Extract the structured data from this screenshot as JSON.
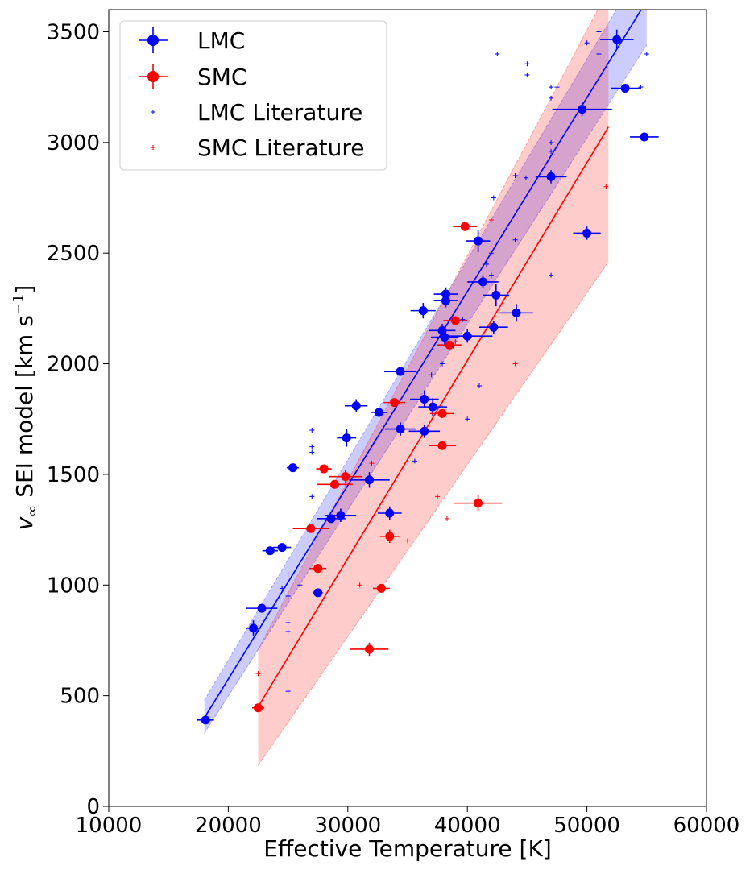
{
  "chart_data": {
    "type": "scatter",
    "xlabel": "Effective Temperature [K]",
    "ylabel_parts": [
      "v",
      "∞",
      " SEI model [km s",
      "−1",
      "]"
    ],
    "xlim": [
      10000,
      60000
    ],
    "ylim": [
      0,
      3600
    ],
    "x_ticks": [
      10000,
      20000,
      30000,
      40000,
      50000,
      60000
    ],
    "y_ticks": [
      0,
      500,
      1000,
      1500,
      2000,
      2500,
      3000,
      3500
    ],
    "grid": false,
    "legend_position": "top-left",
    "colors": {
      "LMC": "#0000ff",
      "SMC": "#ff0000"
    },
    "series": [
      {
        "name": "LMC",
        "marker": "circle-errorbar",
        "color": "#0000ff",
        "points": [
          [
            18100,
            390,
            1400,
            0
          ],
          [
            22100,
            805,
            1200,
            35
          ],
          [
            22800,
            895,
            2600,
            0
          ],
          [
            23500,
            1155,
            1300,
            0
          ],
          [
            24500,
            1170,
            1500,
            0
          ],
          [
            25400,
            1530,
            1000,
            0
          ],
          [
            27500,
            965,
            800,
            0
          ],
          [
            28600,
            1300,
            2400,
            0
          ],
          [
            29400,
            1315,
            2600,
            30
          ],
          [
            29900,
            1665,
            1600,
            40
          ],
          [
            30700,
            1810,
            1900,
            30
          ],
          [
            31800,
            1475,
            3400,
            35
          ],
          [
            32600,
            1780,
            1300,
            0
          ],
          [
            33500,
            1325,
            2000,
            30
          ],
          [
            34400,
            1965,
            2700,
            0
          ],
          [
            34400,
            1705,
            2600,
            30
          ],
          [
            36300,
            2240,
            2100,
            35
          ],
          [
            36400,
            1840,
            2400,
            40
          ],
          [
            36400,
            1695,
            2600,
            30
          ],
          [
            37100,
            1805,
            2400,
            40
          ],
          [
            37900,
            2150,
            2200,
            30
          ],
          [
            38100,
            2120,
            2300,
            40
          ],
          [
            38200,
            2315,
            2000,
            30
          ],
          [
            38200,
            2285,
            2000,
            30
          ],
          [
            40000,
            2125,
            4200,
            30
          ],
          [
            40900,
            2555,
            2000,
            50
          ],
          [
            41300,
            2370,
            2600,
            30
          ],
          [
            42200,
            2165,
            2400,
            30
          ],
          [
            42400,
            2310,
            2200,
            50
          ],
          [
            44100,
            2230,
            2800,
            40
          ],
          [
            47000,
            2845,
            2600,
            30
          ],
          [
            49600,
            3150,
            5000,
            30
          ],
          [
            50000,
            2590,
            2300,
            30
          ],
          [
            52500,
            3465,
            2800,
            45
          ],
          [
            53200,
            3245,
            2400,
            0
          ],
          [
            54800,
            3025,
            2400,
            20
          ]
        ]
      },
      {
        "name": "SMC",
        "marker": "circle-errorbar",
        "color": "#ff0000",
        "points": [
          [
            22500,
            445,
            1000,
            0
          ],
          [
            26900,
            1255,
            3000,
            0
          ],
          [
            27500,
            1075,
            1400,
            0
          ],
          [
            28000,
            1525,
            1300,
            0
          ],
          [
            28900,
            1455,
            3000,
            0
          ],
          [
            29800,
            1490,
            2800,
            30
          ],
          [
            31800,
            710,
            3200,
            30
          ],
          [
            32800,
            985,
            1400,
            0
          ],
          [
            33500,
            1220,
            1600,
            30
          ],
          [
            33900,
            1825,
            1800,
            0
          ],
          [
            37900,
            1775,
            2000,
            0
          ],
          [
            37900,
            1630,
            2300,
            0
          ],
          [
            38500,
            2085,
            2000,
            0
          ],
          [
            39000,
            2195,
            2000,
            0
          ],
          [
            39800,
            2620,
            2000,
            20
          ],
          [
            40900,
            1370,
            4000,
            35
          ]
        ]
      },
      {
        "name": "LMC Literature",
        "marker": "plus",
        "color": "#0000ff",
        "points": [
          [
            24500,
            985
          ],
          [
            25000,
            1050
          ],
          [
            25000,
            950
          ],
          [
            25000,
            830
          ],
          [
            25000,
            790
          ],
          [
            25000,
            520
          ],
          [
            26000,
            1000
          ],
          [
            27000,
            1700
          ],
          [
            27000,
            1625
          ],
          [
            27000,
            1600
          ],
          [
            27000,
            1400
          ],
          [
            35600,
            1560
          ],
          [
            37000,
            1950
          ],
          [
            37900,
            2000
          ],
          [
            38800,
            2080
          ],
          [
            39600,
            2200
          ],
          [
            40000,
            1750
          ],
          [
            41000,
            1900
          ],
          [
            41600,
            2450
          ],
          [
            42000,
            2400
          ],
          [
            42000,
            2500
          ],
          [
            42200,
            2750
          ],
          [
            42500,
            3400
          ],
          [
            44000,
            2850
          ],
          [
            44000,
            2560
          ],
          [
            44900,
            2840
          ],
          [
            45000,
            3355
          ],
          [
            45000,
            3305
          ],
          [
            47000,
            3250
          ],
          [
            47000,
            3200
          ],
          [
            47000,
            3000
          ],
          [
            47000,
            2960
          ],
          [
            47000,
            2400
          ],
          [
            47500,
            3250
          ],
          [
            49800,
            3150
          ],
          [
            50000,
            3450
          ],
          [
            51000,
            3500
          ],
          [
            51000,
            3400
          ],
          [
            54500,
            3250
          ],
          [
            55000,
            3400
          ]
        ]
      },
      {
        "name": "SMC Literature",
        "marker": "plus",
        "color": "#ff0000",
        "points": [
          [
            22500,
            600
          ],
          [
            31000,
            1000
          ],
          [
            32000,
            1550
          ],
          [
            35000,
            1200
          ],
          [
            37500,
            1400
          ],
          [
            38300,
            1300
          ],
          [
            39000,
            2100
          ],
          [
            42000,
            2650
          ],
          [
            44000,
            2000
          ],
          [
            51600,
            2800
          ]
        ]
      }
    ],
    "fits": [
      {
        "of": "LMC",
        "color": "#0000ff",
        "line": [
          [
            18000,
            400
          ],
          [
            55000,
            3640
          ]
        ],
        "band_upper": [
          [
            18000,
            480
          ],
          [
            55000,
            3830
          ]
        ],
        "band_lower": [
          [
            18000,
            330
          ],
          [
            55000,
            3440
          ]
        ]
      },
      {
        "of": "SMC",
        "color": "#ff0000",
        "line": [
          [
            22500,
            450
          ],
          [
            51800,
            3070
          ]
        ],
        "band_upper": [
          [
            22500,
            710
          ],
          [
            51800,
            3690
          ]
        ],
        "band_lower": [
          [
            22500,
            185
          ],
          [
            51800,
            2460
          ]
        ]
      }
    ],
    "legend": [
      "LMC",
      "SMC",
      "LMC Literature",
      "SMC Literature"
    ]
  }
}
